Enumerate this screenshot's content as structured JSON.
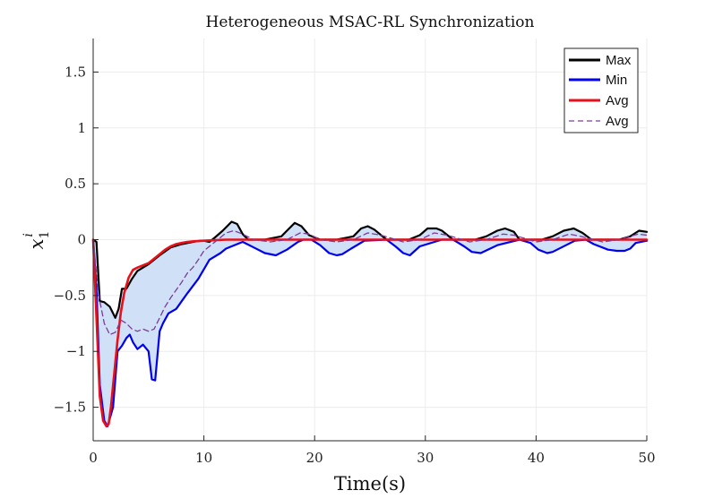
{
  "chart_data": {
    "type": "line",
    "title": "Heterogeneous MSAC-RL Synchronization",
    "xlabel": "Time(s)",
    "ylabel_main": "x",
    "ylabel_sub": "1",
    "ylabel_sup": "i",
    "xlim": [
      0,
      50
    ],
    "ylim": [
      -1.8,
      1.8
    ],
    "xticks": [
      0,
      10,
      20,
      30,
      40,
      50
    ],
    "xtick_labels": [
      "0",
      "10",
      "20",
      "30",
      "40",
      "50"
    ],
    "yticks": [
      -1.5,
      -1,
      -0.5,
      0,
      0.5,
      1,
      1.5
    ],
    "ytick_labels": [
      "−1.5",
      "−1",
      "−0.5",
      "0",
      "0.5",
      "1",
      "1.5"
    ],
    "grid": true,
    "legend_position": "top-right",
    "legend": [
      "Max",
      "Min",
      "Avg",
      "Avg"
    ],
    "colors": {
      "max": "#000000",
      "min": "#0000ee",
      "avg": "#e8101a",
      "avg_dashed": "#7d3c98",
      "band": "#cfe0f7"
    },
    "series": [
      {
        "name": "Max",
        "style": "solid",
        "color": "#000000",
        "x": [
          0,
          0.3,
          0.6,
          1.0,
          1.5,
          2.0,
          2.3,
          2.6,
          3.0,
          3.5,
          4.0,
          5.0,
          6.0,
          7.0,
          8.0,
          9.0,
          9.7,
          10.0,
          10.5,
          11.0,
          11.7,
          12.5,
          13.0,
          13.5,
          14.0,
          15.5,
          17.0,
          17.5,
          18.2,
          18.8,
          19.5,
          20.5,
          22.0,
          23.5,
          24.2,
          24.8,
          25.4,
          26.5,
          28.5,
          29.5,
          30.2,
          31.0,
          31.5,
          32.5,
          34.5,
          35.5,
          36.5,
          37.2,
          38.0,
          38.5,
          40.5,
          41.5,
          42.5,
          43.4,
          44.2,
          45.0,
          46.0,
          47.5,
          48.5,
          49.3,
          50.0
        ],
        "y": [
          0,
          -0.02,
          -0.55,
          -0.56,
          -0.6,
          -0.7,
          -0.62,
          -0.44,
          -0.44,
          -0.35,
          -0.28,
          -0.22,
          -0.14,
          -0.07,
          -0.04,
          -0.02,
          -0.01,
          -0.01,
          -0.02,
          0.02,
          0.08,
          0.16,
          0.14,
          0.05,
          0.0,
          0.0,
          0.03,
          0.08,
          0.15,
          0.12,
          0.04,
          0.0,
          0.0,
          0.03,
          0.1,
          0.12,
          0.09,
          0.0,
          0.0,
          0.04,
          0.1,
          0.1,
          0.08,
          0.0,
          0.0,
          0.03,
          0.08,
          0.1,
          0.07,
          0.0,
          0.0,
          0.03,
          0.08,
          0.1,
          0.06,
          0.0,
          0.0,
          0.0,
          0.03,
          0.08,
          0.07
        ]
      },
      {
        "name": "Min",
        "style": "solid",
        "color": "#0000ee",
        "x": [
          0,
          0.3,
          0.6,
          1.0,
          1.3,
          1.8,
          2.2,
          2.6,
          3.0,
          3.3,
          3.6,
          4.0,
          4.5,
          5.0,
          5.3,
          5.6,
          6.0,
          6.3,
          6.8,
          7.5,
          8.5,
          9.5,
          10.5,
          11.5,
          12.0,
          12.5,
          13.5,
          14.5,
          15.5,
          16.5,
          17.5,
          18.5,
          19.0,
          19.7,
          20.5,
          21.3,
          22.0,
          22.5,
          23.3,
          24.5,
          26.5,
          27.3,
          28.0,
          28.6,
          29.5,
          31.5,
          32.5,
          33.5,
          34.2,
          35.0,
          36.5,
          38.5,
          39.5,
          40.2,
          41.0,
          41.5,
          43.5,
          44.5,
          45.2,
          46.5,
          47.3,
          48.0,
          48.5,
          49.0,
          50.0
        ],
        "y": [
          0,
          -0.45,
          -1.3,
          -1.62,
          -1.67,
          -1.5,
          -1.0,
          -0.95,
          -0.88,
          -0.85,
          -0.92,
          -0.98,
          -0.94,
          -1.0,
          -1.25,
          -1.26,
          -0.82,
          -0.75,
          -0.66,
          -0.62,
          -0.48,
          -0.35,
          -0.18,
          -0.12,
          -0.08,
          -0.06,
          -0.02,
          -0.07,
          -0.12,
          -0.14,
          -0.09,
          -0.02,
          0.0,
          0.0,
          -0.05,
          -0.12,
          -0.14,
          -0.13,
          -0.08,
          -0.01,
          0.0,
          -0.06,
          -0.12,
          -0.14,
          -0.06,
          0.0,
          0.0,
          -0.06,
          -0.11,
          -0.12,
          -0.05,
          0.0,
          -0.03,
          -0.09,
          -0.12,
          -0.11,
          -0.01,
          0.0,
          -0.04,
          -0.09,
          -0.1,
          -0.1,
          -0.08,
          -0.03,
          -0.01
        ]
      },
      {
        "name": "Avg",
        "style": "solid",
        "color": "#e8101a",
        "x": [
          0,
          0.3,
          0.6,
          0.9,
          1.2,
          1.4,
          1.6,
          1.9,
          2.2,
          2.5,
          2.8,
          3.2,
          3.6,
          4.0,
          4.5,
          5.0,
          5.5,
          6.0,
          6.5,
          7.0,
          7.5,
          8.0,
          8.5,
          9.0,
          10.0,
          11.0,
          12.0,
          14.0,
          20.0,
          30.0,
          40.0,
          50.0
        ],
        "y": [
          0,
          -0.7,
          -1.4,
          -1.62,
          -1.67,
          -1.65,
          -1.5,
          -1.2,
          -0.9,
          -0.65,
          -0.48,
          -0.34,
          -0.27,
          -0.25,
          -0.23,
          -0.21,
          -0.17,
          -0.13,
          -0.09,
          -0.06,
          -0.04,
          -0.03,
          -0.02,
          -0.015,
          -0.01,
          -0.005,
          0.0,
          0.0,
          0.0,
          0.0,
          0.0,
          0.0
        ]
      },
      {
        "name": "Avg",
        "style": "dashed",
        "color": "#7d3c98",
        "x": [
          0,
          0.5,
          1.0,
          1.5,
          2.0,
          2.5,
          3.0,
          3.5,
          4.0,
          4.5,
          5.0,
          5.5,
          6.0,
          6.5,
          7.0,
          7.5,
          8.0,
          8.5,
          9.0,
          9.5,
          10.0,
          11.0,
          12.0,
          12.7,
          13.5,
          14.5,
          16.0,
          17.5,
          18.7,
          19.5,
          20.5,
          22.0,
          23.5,
          24.8,
          26.0,
          28.0,
          29.5,
          30.8,
          32.0,
          34.0,
          35.5,
          37.0,
          38.0,
          40.0,
          41.5,
          43.0,
          44.0,
          46.0,
          47.5,
          49.2,
          50.0
        ],
        "y": [
          0,
          -0.5,
          -0.75,
          -0.85,
          -0.83,
          -0.72,
          -0.75,
          -0.8,
          -0.82,
          -0.8,
          -0.82,
          -0.8,
          -0.7,
          -0.6,
          -0.52,
          -0.45,
          -0.38,
          -0.3,
          -0.25,
          -0.18,
          -0.1,
          -0.02,
          0.06,
          0.08,
          0.05,
          0.0,
          -0.02,
          0.0,
          0.06,
          0.05,
          0.0,
          -0.02,
          0.0,
          0.06,
          0.04,
          -0.02,
          0.0,
          0.06,
          0.04,
          -0.02,
          0.0,
          0.05,
          0.04,
          -0.02,
          0.0,
          0.05,
          0.03,
          -0.02,
          0.0,
          0.05,
          0.04
        ]
      }
    ]
  }
}
